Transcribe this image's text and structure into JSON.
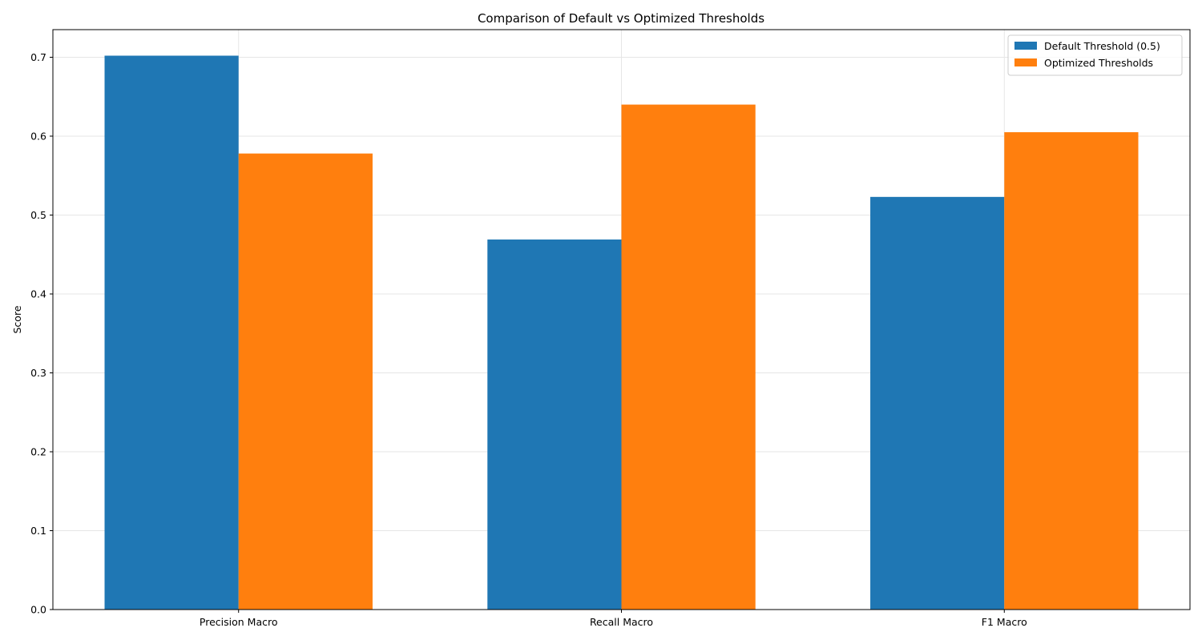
{
  "chart_data": {
    "type": "bar",
    "title": "Comparison of Default vs Optimized Thresholds",
    "xlabel": "",
    "ylabel": "Score",
    "categories": [
      "Precision Macro",
      "Recall Macro",
      "F1 Macro"
    ],
    "series": [
      {
        "name": "Default Threshold (0.5)",
        "color": "#1f77b4",
        "values": [
          0.702,
          0.469,
          0.523
        ]
      },
      {
        "name": "Optimized Thresholds",
        "color": "#ff7f0e",
        "values": [
          0.578,
          0.64,
          0.605
        ]
      }
    ],
    "ylim": [
      0,
      0.735
    ],
    "yticks": [
      "0.0",
      "0.1",
      "0.2",
      "0.3",
      "0.4",
      "0.5",
      "0.6",
      "0.7"
    ],
    "grid": true,
    "legend_position": "top-right"
  }
}
